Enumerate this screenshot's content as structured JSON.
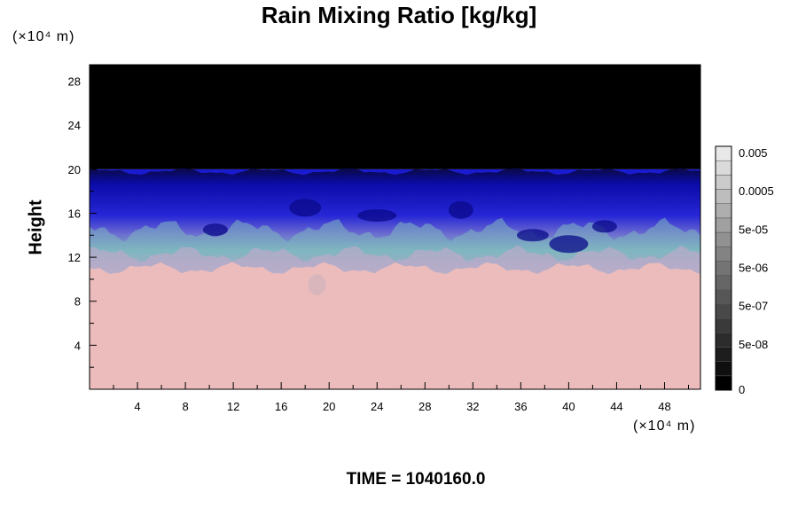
{
  "chart_data": {
    "type": "heatmap",
    "title": "Rain Mixing Ratio [kg/kg]",
    "ylabel": "Height",
    "xlabel": "",
    "x_unit": "(×10⁴ m)",
    "y_unit": "(×10⁴ m)",
    "footer": "TIME = 1040160.0",
    "xlim": [
      0,
      51
    ],
    "ylim": [
      0,
      29.5
    ],
    "x_ticks": [
      "4",
      "8",
      "12",
      "16",
      "20",
      "24",
      "28",
      "32",
      "36",
      "40",
      "44",
      "48"
    ],
    "y_ticks": [
      "4",
      "8",
      "12",
      "16",
      "20",
      "24",
      "28"
    ],
    "colorbar": {
      "labels": [
        "0",
        "5e-08",
        "5e-07",
        "5e-06",
        "5e-05",
        "0.0005",
        "0.005"
      ],
      "levels": 17
    },
    "layers": [
      {
        "name": "pink",
        "from": 0,
        "to": 10.5,
        "color": "#ecbcbc"
      },
      {
        "name": "teal-violet",
        "from": 10.5,
        "to": 14.5,
        "color": "#8fb0c8"
      },
      {
        "name": "blue",
        "from": 14.5,
        "to": 20,
        "color": "#1a1ad0"
      },
      {
        "name": "black",
        "from": 20,
        "to": 29.5,
        "color": "#000000"
      }
    ],
    "grid": false
  }
}
